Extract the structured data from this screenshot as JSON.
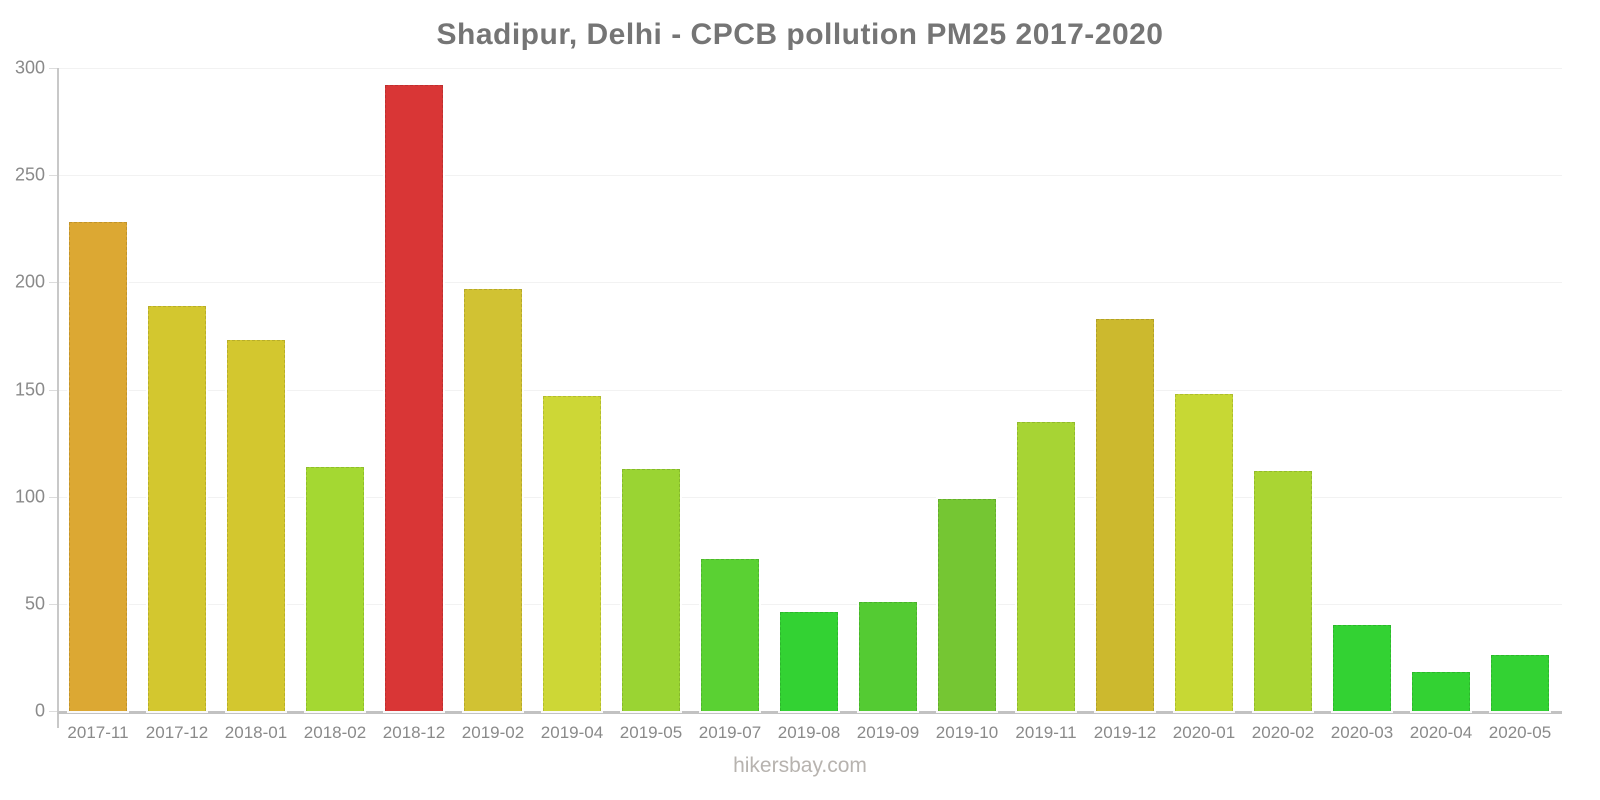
{
  "header": {
    "title": "Shadipur, Delhi - CPCB pollution PM25 2017-2020"
  },
  "footer": {
    "text": "hikersbay.com"
  },
  "chart_data": {
    "type": "bar",
    "title": "Shadipur, Delhi - CPCB pollution PM25 2017-2020",
    "xlabel": "",
    "ylabel": "",
    "ylim": [
      0,
      300
    ],
    "yticks": [
      300,
      250,
      200,
      150,
      100,
      50,
      0
    ],
    "grid": "horizontal",
    "legend": "none",
    "categories": [
      "2017-11",
      "2017-12",
      "2018-01",
      "2018-02",
      "2018-12",
      "2019-02",
      "2019-04",
      "2019-05",
      "2019-07",
      "2019-08",
      "2019-09",
      "2019-10",
      "2019-11",
      "2019-12",
      "2020-01",
      "2020-02",
      "2020-03",
      "2020-04",
      "2020-05"
    ],
    "values": [
      228,
      189,
      173,
      114,
      292,
      197,
      147,
      113,
      71,
      46,
      51,
      99,
      135,
      183,
      148,
      112,
      40,
      18,
      26
    ],
    "bar_colors": [
      "#dca833",
      "#d3c72f",
      "#d3c72f",
      "#a4d832",
      "#d93636",
      "#d1c233",
      "#cdd736",
      "#9ad433",
      "#5ad133",
      "#33d233",
      "#54cb33",
      "#75c633",
      "#a7d434",
      "#ccb92e",
      "#c7d834",
      "#aad533",
      "#33d233",
      "#33d233",
      "#33d233"
    ],
    "colors": {
      "title": "#757575",
      "tick_labels": "#8a8a8a",
      "axis_line": "#c8c8c8",
      "baseline": "#c2c2c2",
      "gridline": "#f2f2f2",
      "footer": "#b7b3af",
      "background": "#ffffff"
    }
  }
}
